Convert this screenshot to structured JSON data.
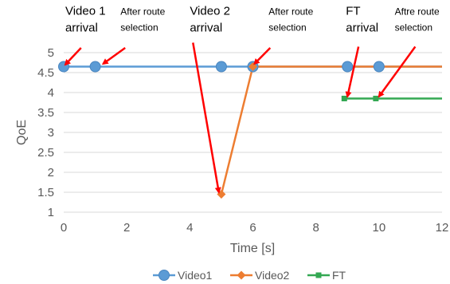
{
  "chart_data": {
    "type": "line",
    "title": "",
    "xlabel": "Time [s]",
    "ylabel": "QoE",
    "xlim": [
      0,
      12
    ],
    "ylim": [
      1,
      5
    ],
    "xticks": [
      0,
      2,
      4,
      6,
      8,
      10,
      12
    ],
    "yticks": [
      1,
      1.5,
      2,
      2.5,
      3,
      3.5,
      4,
      4.5,
      5
    ],
    "grid": "horizontal",
    "legend_position": "bottom",
    "series": [
      {
        "name": "Video1",
        "color": "#5B9BD5",
        "marker": "circle",
        "x": [
          0,
          1,
          5,
          6,
          9,
          10,
          12
        ],
        "y": [
          4.65,
          4.65,
          4.65,
          4.65,
          4.65,
          4.65,
          4.65
        ],
        "marker_indices": [
          0,
          1,
          2,
          3,
          4,
          5
        ]
      },
      {
        "name": "Video2",
        "color": "#ED7D31",
        "marker": "diamond",
        "x": [
          5,
          6,
          12
        ],
        "y": [
          1.45,
          4.65,
          4.65
        ],
        "marker_indices": [
          0,
          1
        ]
      },
      {
        "name": "FT",
        "color": "#33A852",
        "marker": "square",
        "x": [
          8.9,
          9.9,
          12
        ],
        "y": [
          3.85,
          3.85,
          3.85
        ],
        "marker_indices": [
          0,
          1
        ]
      }
    ],
    "annotations": [
      {
        "lines": [
          "Video 1",
          "arrival"
        ],
        "size": "big",
        "label_x": 0.05,
        "label_y": 5.95,
        "target_x": 0.05,
        "target_y": 4.7,
        "tail_x": 0.55,
        "tail_y": 5.12
      },
      {
        "lines": [
          "After route",
          "selection"
        ],
        "size": "small",
        "label_x": 1.8,
        "label_y": 5.95,
        "target_x": 1.25,
        "target_y": 4.72,
        "tail_x": 1.95,
        "tail_y": 5.12
      },
      {
        "lines": [
          "Video 2",
          "arrival"
        ],
        "size": "big",
        "label_x": 4.0,
        "label_y": 5.95,
        "target_x": 4.92,
        "target_y": 1.5,
        "tail_x": 4.1,
        "tail_y": 5.25
      },
      {
        "lines": [
          "After route",
          "selection"
        ],
        "size": "small",
        "label_x": 6.5,
        "label_y": 5.95,
        "target_x": 6.05,
        "target_y": 4.72,
        "tail_x": 6.55,
        "tail_y": 5.12
      },
      {
        "lines": [
          "FT",
          "arrival"
        ],
        "size": "big",
        "label_x": 8.95,
        "label_y": 5.95,
        "target_x": 9.0,
        "target_y": 3.9,
        "tail_x": 9.35,
        "tail_y": 5.15
      },
      {
        "lines": [
          "Aftre route",
          "selection"
        ],
        "size": "small",
        "label_x": 10.5,
        "label_y": 5.95,
        "target_x": 10.0,
        "target_y": 3.9,
        "tail_x": 11.15,
        "tail_y": 5.15
      }
    ]
  }
}
